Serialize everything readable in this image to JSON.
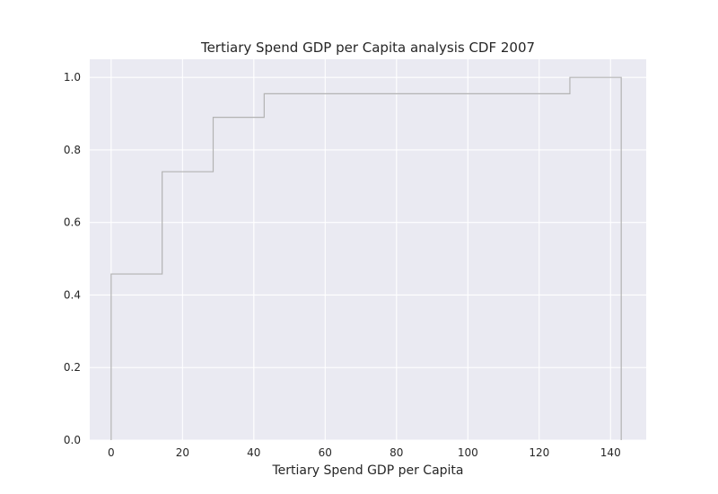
{
  "chart_data": {
    "type": "line",
    "style": "step-cdf",
    "title": "Tertiary Spend GDP per Capita analysis CDF 2007",
    "xlabel": "Tertiary Spend GDP per Capita",
    "ylabel": "",
    "xlim": [
      -6,
      150
    ],
    "ylim": [
      0,
      1.05
    ],
    "xticks": [
      0,
      20,
      40,
      60,
      80,
      100,
      120,
      140
    ],
    "yticks": [
      0.0,
      0.2,
      0.4,
      0.6,
      0.8,
      1.0
    ],
    "xtick_labels": [
      "0",
      "20",
      "40",
      "60",
      "80",
      "100",
      "120",
      "140"
    ],
    "ytick_labels": [
      "0.0",
      "0.2",
      "0.4",
      "0.6",
      "0.8",
      "1.0"
    ],
    "grid": true,
    "legend": "none",
    "series": [
      {
        "color": "#b3b3b3",
        "x": [
          0,
          14.3,
          28.6,
          42.9,
          128.6,
          143
        ],
        "y": [
          0.458,
          0.74,
          0.89,
          0.955,
          1.0,
          1.0
        ],
        "ends_at_zero": true
      }
    ]
  }
}
